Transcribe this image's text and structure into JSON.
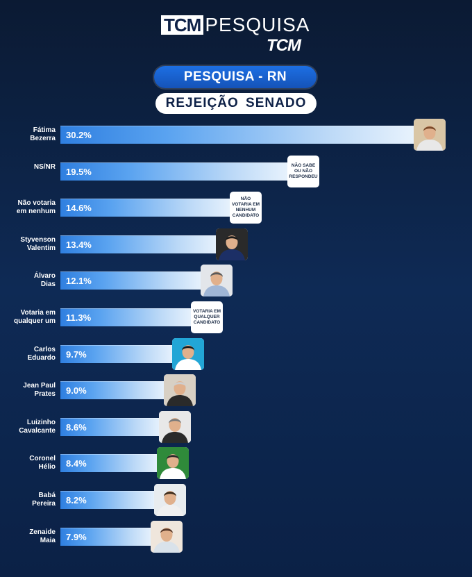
{
  "header": {
    "logo_box": "TCM",
    "logo_word": "PESQUISA",
    "logo_sub": "TCM",
    "pill_blue": "PESQUISA - RN",
    "pill_white": "REJEIÇÃO SENADO"
  },
  "chart_data": {
    "type": "bar",
    "orientation": "horizontal",
    "title": "REJEIÇÃO SENADO",
    "subtitle": "PESQUISA - RN",
    "unit": "%",
    "categories": [
      "Fátima\nBezerra",
      "NS/NR",
      "Não votaria\nem nenhum",
      "Styvenson\nValentim",
      "Álvaro\nDias",
      "Votaria em\nqualquer um",
      "Carlos\nEduardo",
      "Jean Paul\nPrates",
      "Luizinho\nCavalcante",
      "Coronel\nHélio",
      "Babá\nPereira",
      "Zenaide\nMaia"
    ],
    "values": [
      30.2,
      19.5,
      14.6,
      13.4,
      12.1,
      11.3,
      9.7,
      9.0,
      8.6,
      8.4,
      8.2,
      7.9
    ],
    "value_labels": [
      "30.2%",
      "19.5%",
      "14.6%",
      "13.4%",
      "12.1%",
      "11.3%",
      "9.7%",
      "9.0%",
      "8.6%",
      "8.4%",
      "8.2%",
      "7.9%"
    ],
    "badges": [
      {
        "kind": "photo",
        "icon": "candidate-photo-icon",
        "shirt": "#e8e8e8",
        "hair": "#7a4a2a",
        "bg": "#d9c6a6"
      },
      {
        "kind": "text",
        "text": "NÃO SABE\nOU NÃO\nRESPONDEU"
      },
      {
        "kind": "text",
        "text": "NÃO\nVOTARIA EM\nNENHUM\nCANDIDATO"
      },
      {
        "kind": "photo",
        "icon": "candidate-photo-icon",
        "shirt": "#1c2f66",
        "hair": "#1a1a1a",
        "bg": "#2a2a2a"
      },
      {
        "kind": "photo",
        "icon": "candidate-photo-icon",
        "shirt": "#9fb6d6",
        "hair": "#5a5a5a",
        "bg": "#e3e6ea"
      },
      {
        "kind": "text",
        "text": "VOTARIA EM\nQUALQUER\nCANDIDATO"
      },
      {
        "kind": "photo",
        "icon": "candidate-photo-icon",
        "shirt": "#ffffff",
        "hair": "#1a1a1a",
        "bg": "#22a6d6"
      },
      {
        "kind": "photo",
        "icon": "candidate-photo-icon",
        "shirt": "#2a2a2a",
        "hair": "#cfcfcf",
        "bg": "#d8d0c4"
      },
      {
        "kind": "photo",
        "icon": "candidate-photo-icon",
        "shirt": "#2a2a2a",
        "hair": "#7a7a7a",
        "bg": "#e8e8e8"
      },
      {
        "kind": "photo",
        "icon": "candidate-photo-icon",
        "shirt": "#ffffff",
        "hair": "#2a2a2a",
        "bg": "#2f8a3a"
      },
      {
        "kind": "photo",
        "icon": "candidate-photo-icon",
        "shirt": "#f0f0f0",
        "hair": "#3a2a1a",
        "bg": "#e8ecef"
      },
      {
        "kind": "photo",
        "icon": "candidate-photo-icon",
        "shirt": "#d9e2ea",
        "hair": "#5a3a2a",
        "bg": "#efe6dc"
      }
    ],
    "xlim": [
      0,
      32
    ],
    "grid": false,
    "legend": "none"
  }
}
